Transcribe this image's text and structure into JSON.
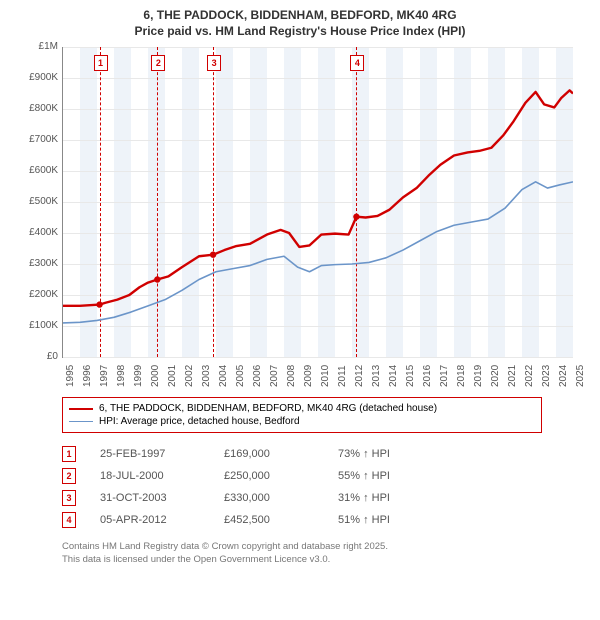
{
  "title_line1": "6, THE PADDOCK, BIDDENHAM, BEDFORD, MK40 4RG",
  "title_line2": "Price paid vs. HM Land Registry's House Price Index (HPI)",
  "chart": {
    "type": "line",
    "background_color": "#ffffff",
    "band_color": "#eef3f9",
    "grid_color": "#e8e8e8",
    "x_start": 1995,
    "x_end": 2025,
    "xticks": [
      1995,
      1996,
      1997,
      1998,
      1999,
      2000,
      2001,
      2002,
      2003,
      2004,
      2005,
      2006,
      2007,
      2008,
      2009,
      2010,
      2011,
      2012,
      2013,
      2014,
      2015,
      2016,
      2017,
      2018,
      2019,
      2020,
      2021,
      2022,
      2023,
      2024,
      2025
    ],
    "ylim": [
      0,
      1000000
    ],
    "yticks": [
      {
        "v": 0,
        "label": "£0"
      },
      {
        "v": 100000,
        "label": "£100K"
      },
      {
        "v": 200000,
        "label": "£200K"
      },
      {
        "v": 300000,
        "label": "£300K"
      },
      {
        "v": 400000,
        "label": "£400K"
      },
      {
        "v": 500000,
        "label": "£500K"
      },
      {
        "v": 600000,
        "label": "£600K"
      },
      {
        "v": 700000,
        "label": "£700K"
      },
      {
        "v": 800000,
        "label": "£800K"
      },
      {
        "v": 900000,
        "label": "£900K"
      },
      {
        "v": 1000000,
        "label": "£1M"
      }
    ],
    "series": [
      {
        "name": "6, THE PADDOCK, BIDDENHAM, BEDFORD, MK40 4RG (detached house)",
        "color": "#d00000",
        "width": 2.4,
        "data": [
          [
            1995.0,
            165000
          ],
          [
            1996.0,
            165000
          ],
          [
            1997.15,
            169000
          ],
          [
            1997.5,
            175000
          ],
          [
            1998.2,
            185000
          ],
          [
            1998.9,
            200000
          ],
          [
            1999.5,
            225000
          ],
          [
            2000.0,
            240000
          ],
          [
            2000.55,
            250000
          ],
          [
            2001.2,
            260000
          ],
          [
            2002.0,
            290000
          ],
          [
            2003.0,
            325000
          ],
          [
            2003.83,
            330000
          ],
          [
            2004.5,
            345000
          ],
          [
            2005.2,
            358000
          ],
          [
            2006.0,
            365000
          ],
          [
            2007.0,
            395000
          ],
          [
            2007.8,
            410000
          ],
          [
            2008.3,
            400000
          ],
          [
            2008.9,
            355000
          ],
          [
            2009.5,
            360000
          ],
          [
            2010.2,
            395000
          ],
          [
            2011.0,
            398000
          ],
          [
            2011.8,
            395000
          ],
          [
            2012.26,
            452500
          ],
          [
            2012.8,
            450000
          ],
          [
            2013.5,
            455000
          ],
          [
            2014.2,
            475000
          ],
          [
            2015.0,
            515000
          ],
          [
            2015.8,
            545000
          ],
          [
            2016.5,
            585000
          ],
          [
            2017.2,
            620000
          ],
          [
            2018.0,
            650000
          ],
          [
            2018.8,
            660000
          ],
          [
            2019.5,
            665000
          ],
          [
            2020.2,
            675000
          ],
          [
            2020.9,
            715000
          ],
          [
            2021.5,
            760000
          ],
          [
            2022.2,
            820000
          ],
          [
            2022.8,
            855000
          ],
          [
            2023.3,
            815000
          ],
          [
            2023.9,
            805000
          ],
          [
            2024.3,
            835000
          ],
          [
            2024.8,
            860000
          ],
          [
            2025.0,
            850000
          ]
        ]
      },
      {
        "name": "HPI: Average price, detached house, Bedford",
        "color": "#6b95c9",
        "width": 1.6,
        "data": [
          [
            1995.0,
            110000
          ],
          [
            1996.0,
            112000
          ],
          [
            1997.0,
            118000
          ],
          [
            1998.0,
            128000
          ],
          [
            1999.0,
            145000
          ],
          [
            2000.0,
            165000
          ],
          [
            2001.0,
            185000
          ],
          [
            2002.0,
            215000
          ],
          [
            2003.0,
            250000
          ],
          [
            2004.0,
            275000
          ],
          [
            2005.0,
            285000
          ],
          [
            2006.0,
            295000
          ],
          [
            2007.0,
            315000
          ],
          [
            2008.0,
            325000
          ],
          [
            2008.8,
            290000
          ],
          [
            2009.5,
            275000
          ],
          [
            2010.2,
            295000
          ],
          [
            2011.0,
            298000
          ],
          [
            2012.0,
            300000
          ],
          [
            2013.0,
            305000
          ],
          [
            2014.0,
            320000
          ],
          [
            2015.0,
            345000
          ],
          [
            2016.0,
            375000
          ],
          [
            2017.0,
            405000
          ],
          [
            2018.0,
            425000
          ],
          [
            2019.0,
            435000
          ],
          [
            2020.0,
            445000
          ],
          [
            2021.0,
            480000
          ],
          [
            2022.0,
            540000
          ],
          [
            2022.8,
            565000
          ],
          [
            2023.5,
            545000
          ],
          [
            2024.2,
            555000
          ],
          [
            2025.0,
            565000
          ]
        ]
      }
    ],
    "sale_markers": [
      {
        "n": "1",
        "year": 1997.15,
        "price": 169000
      },
      {
        "n": "2",
        "year": 2000.55,
        "price": 250000
      },
      {
        "n": "3",
        "year": 2003.83,
        "price": 330000
      },
      {
        "n": "4",
        "year": 2012.26,
        "price": 452500
      }
    ]
  },
  "legend": {
    "items": [
      {
        "label": "6, THE PADDOCK, BIDDENHAM, BEDFORD, MK40 4RG (detached house)",
        "color": "#d00000",
        "w": 2.4
      },
      {
        "label": "HPI: Average price, detached house, Bedford",
        "color": "#6b95c9",
        "w": 1.6
      }
    ]
  },
  "sales": [
    {
      "n": "1",
      "date": "25-FEB-1997",
      "price": "£169,000",
      "diff": "73% ↑ HPI"
    },
    {
      "n": "2",
      "date": "18-JUL-2000",
      "price": "£250,000",
      "diff": "55% ↑ HPI"
    },
    {
      "n": "3",
      "date": "31-OCT-2003",
      "price": "£330,000",
      "diff": "31% ↑ HPI"
    },
    {
      "n": "4",
      "date": "05-APR-2012",
      "price": "£452,500",
      "diff": "51% ↑ HPI"
    }
  ],
  "footer_line1": "Contains HM Land Registry data © Crown copyright and database right 2025.",
  "footer_line2": "This data is licensed under the Open Government Licence v3.0."
}
